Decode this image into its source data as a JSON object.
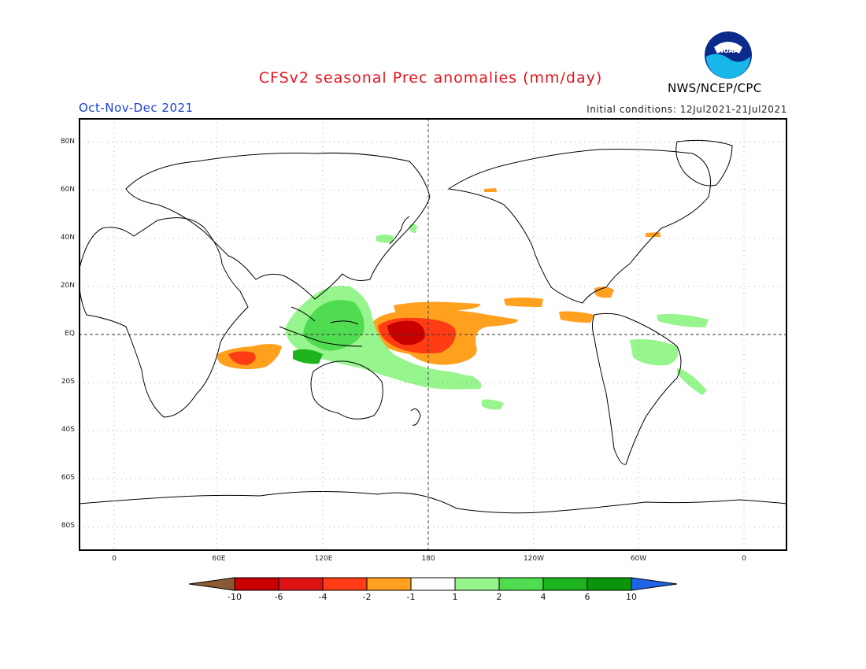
{
  "header": {
    "title": "CFSv2 seasonal Prec anomalies (mm/day)",
    "season": "Oct-Nov-Dec 2021",
    "initial_conditions": "Initial conditions: 12Jul2021-21Jul2021",
    "agency": "NWS/NCEP/CPC",
    "logo_text": "NOAA"
  },
  "map": {
    "lat_labels": [
      "80N",
      "60N",
      "40N",
      "20N",
      "EQ",
      "20S",
      "40S",
      "60S",
      "80S"
    ],
    "lon_labels": [
      "0",
      "60E",
      "120E",
      "180",
      "120W",
      "60W",
      "0"
    ],
    "colors": {
      "coast": "#000000",
      "grid": "#8a8a8a",
      "wet_light": "#96f58c",
      "wet_mid": "#50dc50",
      "wet_dark": "#1eb41e",
      "dry_light": "#ffa01e",
      "dry_mid": "#ff3c14",
      "dry_dark": "#c80000"
    }
  },
  "colorbar": {
    "labels": [
      "-10",
      "-6",
      "-4",
      "-2",
      "-1",
      "1",
      "2",
      "4",
      "6",
      "10"
    ],
    "colors": [
      "#8c5a32",
      "#c80000",
      "#dc1414",
      "#ff3c14",
      "#ffa01e",
      "#ffffff",
      "#96f58c",
      "#50dc50",
      "#1eb41e",
      "#0a960a",
      "#1e64e6"
    ]
  }
}
